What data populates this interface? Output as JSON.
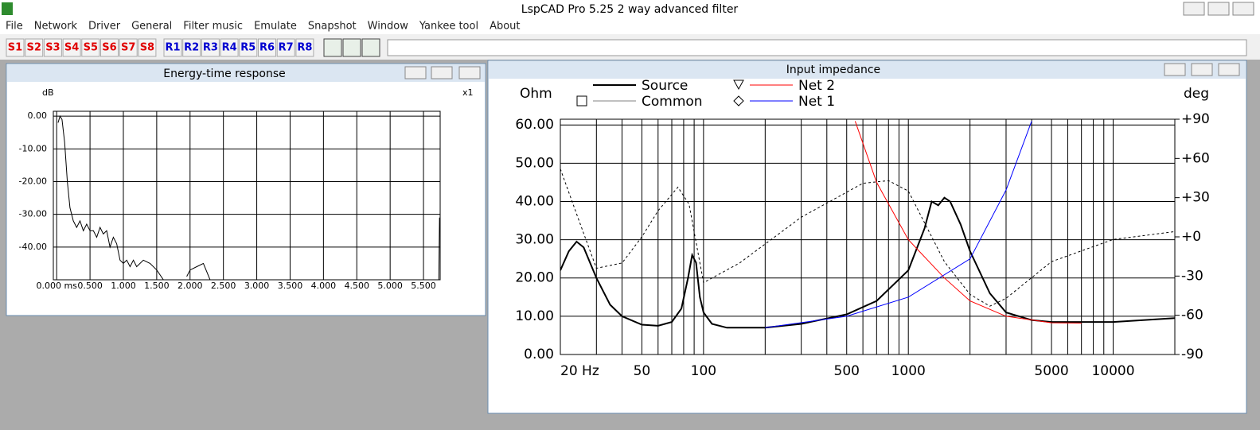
{
  "window_title": "LspCAD Pro 5.25 2 way advanced filter",
  "menu": [
    "File",
    "Network",
    "Driver",
    "General",
    "Filter music",
    "Emulate",
    "Snapshot",
    "Window",
    "Yankee tool",
    "About"
  ],
  "toolbar": {
    "s_buttons": [
      "S1",
      "S2",
      "S3",
      "S4",
      "S5",
      "S6",
      "S7",
      "S8"
    ],
    "s_color": "#e00000",
    "r_buttons": [
      "R1",
      "R2",
      "R3",
      "R4",
      "R5",
      "R6",
      "R7",
      "R8"
    ],
    "r_color": "#0000d0"
  },
  "etr_window": {
    "title": "Energy-time response",
    "chart_data": {
      "type": "line",
      "y_label": "dB",
      "scale_label": "x1",
      "color": "#000000",
      "xlim": [
        -0.05,
        5.75
      ],
      "ylim": [
        -50,
        1.5
      ],
      "grid": true,
      "xticks": [
        {
          "value": 0,
          "label": "0.000 ms"
        },
        {
          "value": 0.5,
          "label": "0.500"
        },
        {
          "value": 1,
          "label": "1.000"
        },
        {
          "value": 1.5,
          "label": "1.500"
        },
        {
          "value": 2,
          "label": "2.000"
        },
        {
          "value": 2.5,
          "label": "2.500"
        },
        {
          "value": 3,
          "label": "3.000"
        },
        {
          "value": 3.5,
          "label": "3.500"
        },
        {
          "value": 4,
          "label": "4.000"
        },
        {
          "value": 4.5,
          "label": "4.500"
        },
        {
          "value": 5,
          "label": "5.000"
        },
        {
          "value": 5.5,
          "label": "5.500"
        }
      ],
      "yticks": [
        {
          "value": 0,
          "label": "0.00"
        },
        {
          "value": -10,
          "label": "-10.00"
        },
        {
          "value": -20,
          "label": "-20.00"
        },
        {
          "value": -30,
          "label": "-30.00"
        },
        {
          "value": -40,
          "label": "-40.00"
        }
      ],
      "x": [
        0.02,
        0.05,
        0.08,
        0.12,
        0.16,
        0.2,
        0.25,
        0.3,
        0.35,
        0.4,
        0.45,
        0.5,
        0.55,
        0.6,
        0.65,
        0.7,
        0.75,
        0.8,
        0.85,
        0.9,
        0.95,
        1.0,
        1.05,
        1.1,
        1.15,
        1.2,
        1.3,
        1.4,
        1.5,
        1.6,
        1.8,
        1.95,
        2.0,
        2.1,
        2.2,
        2.3,
        4.0,
        5.73,
        5.74
      ],
      "values": [
        -2,
        0,
        -1,
        -8,
        -20,
        -28,
        -32,
        -34,
        -32,
        -35,
        -33,
        -35,
        -35,
        -37,
        -34,
        -36,
        -35,
        -40,
        -37,
        -39,
        -44,
        -45,
        -44,
        -46,
        -44,
        -46,
        -44,
        -45,
        -47,
        -50,
        null,
        -49,
        -47,
        -46,
        -45,
        -50,
        null,
        -50,
        -31
      ]
    }
  },
  "impedance_window": {
    "title": "Input impedance",
    "chart_data": {
      "type": "line",
      "y_label": "Ohm",
      "y2_label": "deg",
      "log_x": true,
      "grid": true,
      "xlim": [
        20,
        20000
      ],
      "ylim": [
        0,
        61.5
      ],
      "y2lim": [
        -90,
        90
      ],
      "xticks": [
        {
          "value": 20,
          "label": "20 Hz"
        },
        50,
        100,
        500,
        1000,
        5000,
        10000
      ],
      "xgrid": [
        20,
        30,
        40,
        50,
        60,
        70,
        80,
        90,
        100,
        200,
        300,
        400,
        500,
        600,
        700,
        800,
        900,
        1000,
        2000,
        3000,
        4000,
        5000,
        6000,
        7000,
        8000,
        9000,
        10000,
        20000
      ],
      "yticks": [
        {
          "value": 0,
          "label": "0.00"
        },
        {
          "value": 10,
          "label": "10.00"
        },
        {
          "value": 20,
          "label": "20.00"
        },
        {
          "value": 30,
          "label": "30.00"
        },
        {
          "value": 40,
          "label": "40.00"
        },
        {
          "value": 50,
          "label": "50.00"
        },
        {
          "value": 60,
          "label": "60.00"
        }
      ],
      "y2ticks": [
        {
          "value": 90,
          "label": "+90"
        },
        {
          "value": 60,
          "label": "+60"
        },
        {
          "value": 30,
          "label": "+30"
        },
        {
          "value": 0,
          "label": "+0"
        },
        -30,
        -60,
        -90
      ],
      "series": [
        {
          "name": "Source",
          "color": "#000000",
          "line_width": 2,
          "x": [
            20,
            22,
            24,
            26,
            30,
            35,
            40,
            50,
            60,
            70,
            78,
            84,
            88,
            92,
            96,
            100,
            110,
            130,
            200,
            300,
            500,
            700,
            1000,
            1200,
            1300,
            1400,
            1500,
            1600,
            1800,
            2000,
            2500,
            3000,
            4000,
            5000,
            10000,
            20000
          ],
          "values": [
            22,
            27,
            29.5,
            28,
            20,
            13,
            10,
            7.8,
            7.5,
            8.5,
            12,
            20,
            26,
            24,
            15,
            11,
            8,
            7,
            7,
            8,
            10.5,
            14,
            22,
            33,
            40,
            39,
            41,
            40,
            34,
            27,
            16,
            11,
            9,
            8.5,
            8.5,
            9.5
          ]
        },
        {
          "name": "Common",
          "color": "#000000",
          "legend_color": "#808080",
          "dashed": true,
          "marker": "square",
          "axis": "y2",
          "x": [
            20,
            25,
            30,
            40,
            50,
            60,
            75,
            85,
            100,
            150,
            300,
            600,
            800,
            1000,
            1500,
            2000,
            2500,
            3000,
            5000,
            10000,
            20000
          ],
          "values": [
            52,
            10,
            -24,
            -20,
            0,
            20,
            38,
            25,
            -35,
            -20,
            15,
            41,
            43,
            35,
            -19,
            -44,
            -53,
            -47,
            -19,
            -2,
            4
          ]
        },
        {
          "name": "Net 2",
          "color": "#ff0000",
          "marker": "triangle",
          "x": [
            550,
            700,
            1000,
            1500,
            2000,
            3000,
            5000,
            7000
          ],
          "values": [
            61,
            45,
            30,
            20,
            14,
            10,
            8.3,
            8.2
          ]
        },
        {
          "name": "Net 1",
          "color": "#0000ff",
          "marker": "diamond",
          "x": [
            200,
            500,
            1000,
            2000,
            3000,
            4000
          ],
          "values": [
            7,
            10,
            15,
            25,
            43,
            61
          ]
        }
      ]
    }
  }
}
